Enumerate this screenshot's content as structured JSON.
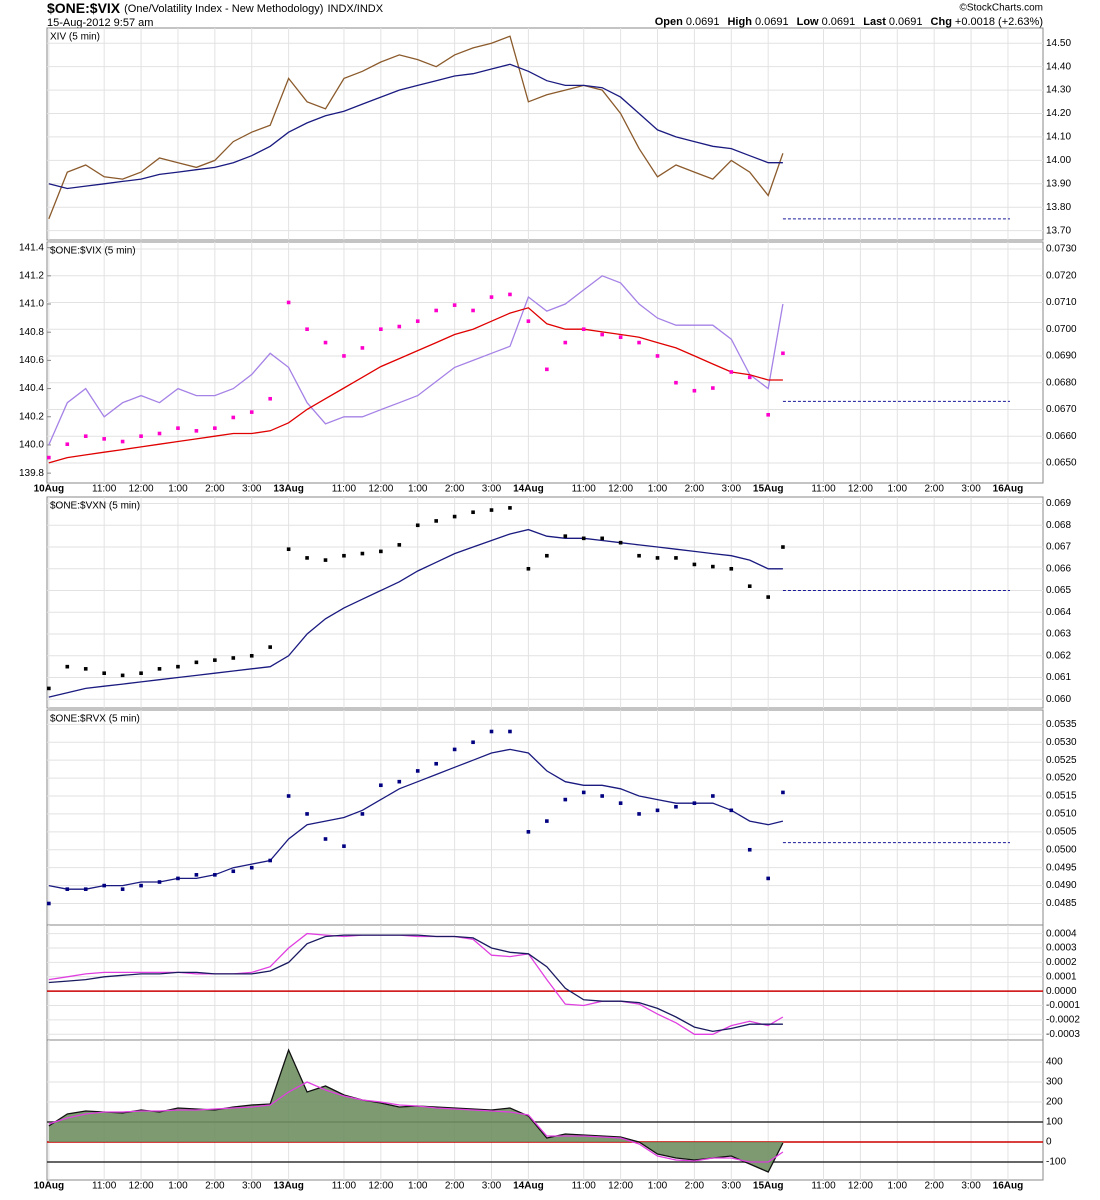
{
  "header": {
    "symbol": "$ONE:$VIX",
    "description": "(One/Volatility Index - New Methodology)",
    "exchange": "INDX/INDX",
    "date": "15-Aug-2012 9:57 am",
    "source": "©StockCharts.com",
    "quote": [
      {
        "label": "Open",
        "value": 0.0691
      },
      {
        "label": "High",
        "value": 0.0691
      },
      {
        "label": "Low",
        "value": 0.0691
      },
      {
        "label": "Last",
        "value": 0.0691
      },
      {
        "label": "Chg",
        "value": "+0.0018 (+2.63%)"
      }
    ]
  },
  "time_axis": {
    "xlim": [
      -0.1,
      53.9
    ],
    "x": [
      0,
      1,
      2,
      3,
      4,
      5,
      6,
      7,
      8,
      9,
      10,
      11,
      12,
      13,
      14,
      15,
      16,
      17,
      18,
      19,
      20,
      21,
      22,
      23,
      24,
      25,
      26,
      27,
      28,
      29,
      30,
      31,
      32,
      33,
      34,
      35,
      36,
      37,
      38,
      39,
      39.8
    ],
    "xticks": [
      {
        "value": 0,
        "label": "10Aug"
      },
      {
        "value": 3,
        "label": "11:00"
      },
      {
        "value": 5,
        "label": "12:00"
      },
      {
        "value": 7,
        "label": "1:00"
      },
      {
        "value": 9,
        "label": "2:00"
      },
      {
        "value": 11,
        "label": "3:00"
      },
      {
        "value": 13,
        "label": "13Aug"
      },
      {
        "value": 16,
        "label": "11:00"
      },
      {
        "value": 18,
        "label": "12:00"
      },
      {
        "value": 20,
        "label": "1:00"
      },
      {
        "value": 22,
        "label": "2:00"
      },
      {
        "value": 24,
        "label": "3:00"
      },
      {
        "value": 26,
        "label": "14Aug"
      },
      {
        "value": 29,
        "label": "11:00"
      },
      {
        "value": 31,
        "label": "12:00"
      },
      {
        "value": 33,
        "label": "1:00"
      },
      {
        "value": 35,
        "label": "2:00"
      },
      {
        "value": 37,
        "label": "3:00"
      },
      {
        "value": 39,
        "label": "15Aug"
      },
      {
        "value": 42,
        "label": "11:00"
      },
      {
        "value": 44,
        "label": "12:00"
      },
      {
        "value": 46,
        "label": "1:00"
      },
      {
        "value": 48,
        "label": "2:00"
      },
      {
        "value": 50,
        "label": "3:00"
      },
      {
        "value": 52,
        "label": "16Aug"
      }
    ]
  },
  "chart_data": [
    {
      "type": "line",
      "title": "XIV (5 min)",
      "ylim": [
        13.66,
        14.565
      ],
      "x_labels": false,
      "yticks": [
        {
          "value": 13.7,
          "label": "13.70"
        },
        {
          "value": 13.8,
          "label": "13.80"
        },
        {
          "value": 13.9,
          "label": "13.90"
        },
        {
          "value": 14.0,
          "label": "14.00"
        },
        {
          "value": 14.1,
          "label": "14.10"
        },
        {
          "value": 14.2,
          "label": "14.20"
        },
        {
          "value": 14.3,
          "label": "14.30"
        },
        {
          "value": 14.4,
          "label": "14.40"
        },
        {
          "value": 14.5,
          "label": "14.50"
        }
      ],
      "hlines": [
        {
          "value": 13.75,
          "color": "#1a1a9a",
          "dash": true
        }
      ],
      "series": [
        {
          "color": "#8b5a2b",
          "mark": "line",
          "values": [
            13.75,
            13.95,
            13.98,
            13.93,
            13.92,
            13.95,
            14.01,
            13.99,
            13.97,
            14.0,
            14.08,
            14.12,
            14.15,
            14.35,
            14.25,
            14.22,
            14.35,
            14.38,
            14.42,
            14.45,
            14.43,
            14.4,
            14.45,
            14.48,
            14.5,
            14.53,
            14.25,
            14.28,
            14.3,
            14.32,
            14.3,
            14.2,
            14.05,
            13.93,
            13.98,
            13.95,
            13.92,
            14.0,
            13.95,
            13.85,
            14.03
          ]
        },
        {
          "color": "#1a1a80",
          "mark": "line",
          "values": [
            13.9,
            13.88,
            13.89,
            13.9,
            13.91,
            13.92,
            13.94,
            13.95,
            13.96,
            13.97,
            13.99,
            14.02,
            14.06,
            14.12,
            14.16,
            14.19,
            14.21,
            14.24,
            14.27,
            14.3,
            14.32,
            14.34,
            14.36,
            14.37,
            14.39,
            14.41,
            14.38,
            14.34,
            14.32,
            14.32,
            14.31,
            14.27,
            14.2,
            14.13,
            14.1,
            14.08,
            14.06,
            14.05,
            14.02,
            13.99,
            13.99
          ]
        }
      ]
    },
    {
      "type": "line",
      "title": "$ONE:$VIX (5 min)",
      "ylim": [
        0.06425,
        0.07326
      ],
      "y2lim": [
        139.73,
        141.44
      ],
      "x_labels": true,
      "yticks": [
        {
          "value": 0.065,
          "label": "0.0650"
        },
        {
          "value": 0.066,
          "label": "0.0660"
        },
        {
          "value": 0.067,
          "label": "0.0670"
        },
        {
          "value": 0.068,
          "label": "0.0680"
        },
        {
          "value": 0.069,
          "label": "0.0690"
        },
        {
          "value": 0.07,
          "label": "0.0700"
        },
        {
          "value": 0.071,
          "label": "0.0710"
        },
        {
          "value": 0.072,
          "label": "0.0720"
        },
        {
          "value": 0.073,
          "label": "0.0730"
        }
      ],
      "y2ticks": [
        139.8,
        {
          "value": 140,
          "label": "140.0"
        },
        140.2,
        140.4,
        140.6,
        140.8,
        {
          "value": 141,
          "label": "141.0"
        },
        141.2,
        141.4
      ],
      "hlines": [
        {
          "value": 0.0673,
          "color": "#1a1a9a",
          "dash": true
        }
      ],
      "series": [
        {
          "color": "#a582e6",
          "mark": "line",
          "axis": "y2",
          "values": [
            140.0,
            140.3,
            140.4,
            140.2,
            140.3,
            140.35,
            140.3,
            140.4,
            140.35,
            140.35,
            140.4,
            140.5,
            140.65,
            140.55,
            140.3,
            140.15,
            140.2,
            140.2,
            140.25,
            140.3,
            140.35,
            140.45,
            140.55,
            140.6,
            140.65,
            140.7,
            141.05,
            140.95,
            141.0,
            141.1,
            141.2,
            141.15,
            141.0,
            140.9,
            140.85,
            140.85,
            140.85,
            140.75,
            140.5,
            140.4,
            141.0
          ]
        },
        {
          "color": "#e00000",
          "mark": "line",
          "values": [
            0.065,
            0.0652,
            0.0653,
            0.0654,
            0.0655,
            0.0656,
            0.0657,
            0.0658,
            0.0659,
            0.066,
            0.0661,
            0.0661,
            0.0662,
            0.0665,
            0.067,
            0.0674,
            0.0678,
            0.0682,
            0.0686,
            0.0689,
            0.0692,
            0.0695,
            0.0698,
            0.07,
            0.0703,
            0.0706,
            0.0708,
            0.0702,
            0.07,
            0.07,
            0.0699,
            0.0698,
            0.0697,
            0.0695,
            0.0693,
            0.069,
            0.0687,
            0.0684,
            0.0683,
            0.0681,
            0.0681
          ]
        },
        {
          "color": "#ff00cc",
          "mark": "dots",
          "values": [
            0.0652,
            0.0657,
            0.066,
            0.0659,
            0.0658,
            0.066,
            0.0661,
            0.0663,
            0.0662,
            0.0663,
            0.0667,
            0.0669,
            0.0674,
            0.071,
            0.07,
            0.0695,
            0.069,
            0.0693,
            0.07,
            0.0701,
            0.0703,
            0.0707,
            0.0709,
            0.0707,
            0.0712,
            0.0713,
            0.0703,
            0.0685,
            0.0695,
            0.07,
            0.0698,
            0.0697,
            0.0695,
            0.069,
            0.068,
            0.0677,
            0.0678,
            0.0684,
            0.0682,
            0.0668,
            0.0691
          ]
        }
      ]
    },
    {
      "type": "line",
      "title": "$ONE:$VXN (5 min)",
      "ylim": [
        0.0596,
        0.0693
      ],
      "x_labels": false,
      "yticks": [
        {
          "value": 0.06,
          "label": "0.060"
        },
        0.061,
        0.062,
        0.063,
        0.064,
        0.065,
        0.066,
        0.067,
        0.068,
        0.069
      ],
      "hlines": [
        {
          "value": 0.065,
          "color": "#1a1a9a",
          "dash": true
        }
      ],
      "series": [
        {
          "color": "#1a1a80",
          "mark": "line",
          "values": [
            0.0601,
            0.0603,
            0.0605,
            0.0606,
            0.0607,
            0.0608,
            0.0609,
            0.061,
            0.0611,
            0.0612,
            0.0613,
            0.0614,
            0.0615,
            0.062,
            0.063,
            0.0637,
            0.0642,
            0.0646,
            0.065,
            0.0654,
            0.0659,
            0.0663,
            0.0667,
            0.067,
            0.0673,
            0.0676,
            0.0678,
            0.0675,
            0.0674,
            0.0674,
            0.0673,
            0.0672,
            0.0671,
            0.067,
            0.0669,
            0.0668,
            0.0667,
            0.0666,
            0.0664,
            0.066,
            0.066
          ]
        },
        {
          "color": "#000000",
          "mark": "dots",
          "values": [
            0.0605,
            0.0615,
            0.0614,
            0.0612,
            0.0611,
            0.0612,
            0.0614,
            0.0615,
            0.0617,
            0.0618,
            0.0619,
            0.062,
            0.0624,
            0.0669,
            0.0665,
            0.0664,
            0.0666,
            0.0667,
            0.0668,
            0.0671,
            0.068,
            0.0682,
            0.0684,
            0.0686,
            0.0687,
            0.0688,
            0.066,
            0.0666,
            0.0675,
            0.0674,
            0.0674,
            0.0672,
            0.0666,
            0.0665,
            0.0665,
            0.0662,
            0.0661,
            0.066,
            0.0652,
            0.0647,
            0.067
          ]
        }
      ]
    },
    {
      "type": "line",
      "title": "$ONE:$RVX (5 min)",
      "ylim": [
        0.0479,
        0.0539
      ],
      "x_labels": false,
      "yticks": [
        0.0485,
        {
          "value": 0.049,
          "label": "0.0490"
        },
        0.0495,
        {
          "value": 0.05,
          "label": "0.0500"
        },
        0.0505,
        {
          "value": 0.051,
          "label": "0.0510"
        },
        0.0515,
        {
          "value": 0.052,
          "label": "0.0520"
        },
        0.0525,
        {
          "value": 0.053,
          "label": "0.0530"
        },
        0.0535
      ],
      "hlines": [
        {
          "value": 0.0502,
          "color": "#1a1a9a",
          "dash": true
        }
      ],
      "series": [
        {
          "color": "#1a1a80",
          "mark": "line",
          "values": [
            0.049,
            0.0489,
            0.0489,
            0.049,
            0.049,
            0.0491,
            0.0491,
            0.0492,
            0.0492,
            0.0493,
            0.0495,
            0.0496,
            0.0497,
            0.0503,
            0.0507,
            0.0508,
            0.0509,
            0.0511,
            0.0514,
            0.0517,
            0.0519,
            0.0521,
            0.0523,
            0.0525,
            0.0527,
            0.0528,
            0.0527,
            0.0522,
            0.0519,
            0.0518,
            0.0518,
            0.0517,
            0.0515,
            0.0514,
            0.0513,
            0.0513,
            0.0513,
            0.0511,
            0.0508,
            0.0507,
            0.0508
          ]
        },
        {
          "color": "#000080",
          "mark": "dots",
          "values": [
            0.0485,
            0.0489,
            0.0489,
            0.049,
            0.0489,
            0.049,
            0.0491,
            0.0492,
            0.0493,
            0.0493,
            0.0494,
            0.0495,
            0.0497,
            0.0515,
            0.051,
            0.0503,
            0.0501,
            0.051,
            0.0518,
            0.0519,
            0.0522,
            0.0524,
            0.0528,
            0.053,
            0.0533,
            0.0533,
            0.0505,
            0.0508,
            0.0514,
            0.0516,
            0.0515,
            0.0513,
            0.051,
            0.0511,
            0.0512,
            0.0513,
            0.0515,
            0.0511,
            0.05,
            0.0492,
            0.0516
          ]
        }
      ]
    },
    {
      "type": "line",
      "ylim": [
        -0.00034,
        0.00046
      ],
      "x_labels": false,
      "yticks": [
        0.0004,
        0.0003,
        0.0002,
        0.0001,
        {
          "value": 0,
          "label": "0.0000"
        },
        -0.0001,
        -0.0002,
        -0.0003
      ],
      "hlines": [
        {
          "value": 0,
          "color": "#cc0000",
          "dash": false
        }
      ],
      "series": [
        {
          "color": "#e040e0",
          "mark": "line",
          "values": [
            8e-05,
            0.0001,
            0.00012,
            0.00013,
            0.00013,
            0.00013,
            0.00013,
            0.00013,
            0.00012,
            0.00012,
            0.00012,
            0.00013,
            0.00017,
            0.0003,
            0.0004,
            0.00039,
            0.00038,
            0.00039,
            0.00039,
            0.00039,
            0.00038,
            0.00038,
            0.00038,
            0.00036,
            0.00025,
            0.00024,
            0.00026,
            8e-05,
            -9e-05,
            -0.0001,
            -7e-05,
            -7e-05,
            -9e-05,
            -0.00016,
            -0.00022,
            -0.0003,
            -0.0003,
            -0.00024,
            -0.00021,
            -0.00024,
            -0.00018
          ]
        },
        {
          "color": "#1a1a60",
          "mark": "line",
          "values": [
            6e-05,
            7e-05,
            8e-05,
            0.0001,
            0.00011,
            0.00012,
            0.00012,
            0.00013,
            0.00013,
            0.00012,
            0.00012,
            0.00012,
            0.00014,
            0.0002,
            0.00033,
            0.00038,
            0.00039,
            0.00039,
            0.00039,
            0.00039,
            0.00039,
            0.00038,
            0.00038,
            0.00037,
            0.0003,
            0.00027,
            0.00026,
            0.00017,
            2e-05,
            -6e-05,
            -7e-05,
            -7e-05,
            -8e-05,
            -0.00012,
            -0.00018,
            -0.00025,
            -0.00028,
            -0.00026,
            -0.00023,
            -0.00023,
            -0.00023
          ]
        }
      ]
    },
    {
      "type": "line",
      "ylim": [
        -190,
        510
      ],
      "x_labels": true,
      "yticks": [
        400,
        300,
        200,
        100,
        0,
        -100
      ],
      "hlines": [
        {
          "value": 100,
          "color": "#333333",
          "dash": false
        },
        {
          "value": 0,
          "color": "#cc0000",
          "dash": false
        },
        {
          "value": -100,
          "color": "#333333",
          "dash": false
        }
      ],
      "series": [
        {
          "color": "#111111",
          "fill": "#6f8f62",
          "mark": "area",
          "values": [
            80,
            140,
            155,
            150,
            145,
            160,
            150,
            170,
            165,
            160,
            175,
            185,
            190,
            460,
            250,
            280,
            235,
            210,
            195,
            175,
            180,
            175,
            170,
            165,
            160,
            170,
            130,
            20,
            40,
            35,
            30,
            25,
            0,
            -60,
            -80,
            -90,
            -80,
            -70,
            -110,
            -150,
            -5
          ]
        },
        {
          "color": "#e040e0",
          "mark": "line",
          "values": [
            90,
            120,
            140,
            150,
            150,
            155,
            155,
            160,
            160,
            165,
            170,
            175,
            185,
            250,
            300,
            260,
            230,
            210,
            200,
            185,
            180,
            170,
            165,
            160,
            155,
            150,
            135,
            30,
            30,
            30,
            25,
            20,
            -10,
            -70,
            -90,
            -95,
            -80,
            -80,
            -100,
            -100,
            -50
          ]
        }
      ]
    }
  ]
}
